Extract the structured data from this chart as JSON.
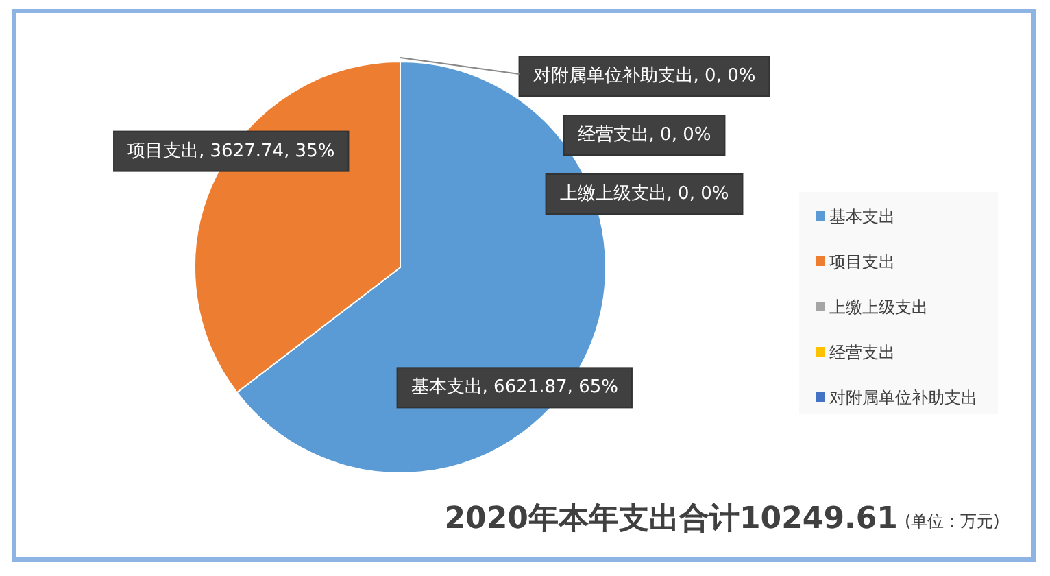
{
  "chart_data": {
    "type": "pie",
    "title": "2020年本年支出合计10249.61",
    "subtitle": "(单位：万元)",
    "categories": [
      "基本支出",
      "项目支出",
      "上缴上级支出",
      "经营支出",
      "对附属单位补助支出"
    ],
    "values": [
      6621.87,
      3627.74,
      0,
      0,
      0
    ],
    "colors": [
      "#5b9bd5",
      "#ed7d31",
      "#a5a5a5",
      "#ffc000",
      "#4472c4"
    ],
    "value_labels": [
      "基本支出, 6621.87, 65%",
      "项目支出, 3627.74, 35%",
      "上缴上级支出, 0, 0%",
      "经营支出, 0, 0%",
      "对附属单位补助支出, 0, 0%"
    ],
    "legend": "right"
  }
}
